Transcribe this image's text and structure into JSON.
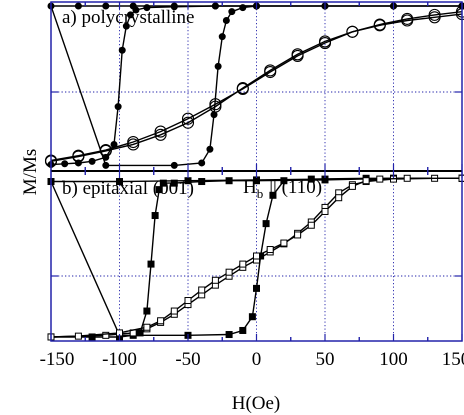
{
  "chart_data": [
    {
      "type": "line",
      "title": "a) polycrystalline",
      "xlabel": "H(Oe)",
      "ylabel": "M/Ms",
      "xlim": [
        -150,
        150
      ],
      "ylim": [
        -1.05,
        1.05
      ],
      "x_ticks": [
        "-150",
        "-100",
        "-50",
        "0",
        "50",
        "100",
        "150"
      ],
      "grid": true,
      "series": [
        {
          "marker": "filled-circle",
          "x": [
            -150,
            -140,
            -130,
            -120,
            -110,
            -104,
            -101,
            -98,
            -95,
            -92,
            -88,
            -80,
            -60,
            -30,
            0,
            50,
            100,
            150
          ],
          "y": [
            -0.97,
            -0.96,
            -0.95,
            -0.93,
            -0.88,
            -0.72,
            -0.25,
            0.45,
            0.75,
            0.89,
            0.95,
            0.98,
            0.99,
            1.0,
            1.0,
            1.0,
            1.0,
            1.0
          ]
        },
        {
          "marker": "filled-circle",
          "x": [
            150,
            100,
            50,
            0,
            -30,
            -60,
            -90,
            -110,
            -130,
            -150,
            -110,
            -60,
            -40,
            -34,
            -31,
            -28,
            -25,
            -22,
            -18,
            -10,
            0
          ],
          "y": [
            1.0,
            1.0,
            1.0,
            1.0,
            1.0,
            1.0,
            1.0,
            1.0,
            1.0,
            1.0,
            -0.98,
            -0.98,
            -0.95,
            -0.78,
            -0.35,
            0.25,
            0.62,
            0.82,
            0.93,
            0.98,
            1.0
          ]
        },
        {
          "marker": "open-circle",
          "x": [
            -150,
            -130,
            -110,
            -90,
            -70,
            -50,
            -30,
            -10,
            10,
            30,
            50,
            70,
            90,
            110,
            130,
            150
          ],
          "y": [
            -0.93,
            -0.87,
            -0.8,
            -0.72,
            -0.6,
            -0.45,
            -0.25,
            -0.02,
            0.2,
            0.4,
            0.56,
            0.68,
            0.76,
            0.82,
            0.86,
            0.9
          ]
        },
        {
          "marker": "open-circle",
          "x": [
            150,
            130,
            110,
            90,
            70,
            50,
            30,
            10,
            -10,
            -30,
            -50,
            -70,
            -90,
            -110,
            -130,
            -150
          ],
          "y": [
            0.93,
            0.89,
            0.84,
            0.77,
            0.68,
            0.54,
            0.38,
            0.18,
            -0.03,
            -0.22,
            -0.4,
            -0.56,
            -0.69,
            -0.79,
            -0.86,
            -0.92
          ]
        }
      ]
    },
    {
      "type": "line",
      "title": "b) epitaxial (001)",
      "annotation": {
        "main": "H",
        "sub": "b",
        "rest": "|| (110)"
      },
      "xlabel": "H(Oe)",
      "ylabel": "M/Ms",
      "xlim": [
        -150,
        150
      ],
      "ylim": [
        -1.05,
        1.05
      ],
      "x_ticks": [
        "-150",
        "-100",
        "-50",
        "0",
        "50",
        "100",
        "150"
      ],
      "grid": true,
      "series": [
        {
          "marker": "filled-square",
          "x": [
            -150,
            -120,
            -100,
            -90,
            -85,
            -80,
            -77,
            -74,
            -71,
            -68,
            -60,
            -40,
            -20,
            0,
            50,
            100,
            150
          ],
          "y": [
            -1.0,
            -1.0,
            -1.0,
            -0.98,
            -0.95,
            -0.68,
            -0.1,
            0.5,
            0.82,
            0.9,
            0.9,
            0.92,
            0.93,
            0.93,
            0.94,
            0.96,
            0.96
          ]
        },
        {
          "marker": "filled-square",
          "x": [
            150,
            100,
            50,
            0,
            -50,
            -100,
            -150,
            -100,
            -50,
            -20,
            -10,
            -3,
            0,
            3,
            7,
            12,
            20,
            40,
            80,
            150
          ],
          "y": [
            0.96,
            0.96,
            0.95,
            0.94,
            0.93,
            0.92,
            0.92,
            -0.98,
            -0.98,
            -0.97,
            -0.92,
            -0.75,
            -0.4,
            0.0,
            0.4,
            0.75,
            0.93,
            0.95,
            0.96,
            0.96
          ]
        },
        {
          "marker": "open-square",
          "x": [
            -150,
            -110,
            -90,
            -80,
            -70,
            -60,
            -50,
            -40,
            -30,
            -20,
            -10,
            0,
            10,
            20,
            30,
            40,
            50,
            60,
            70,
            80,
            100,
            130,
            150
          ],
          "y": [
            -1.0,
            -0.98,
            -0.95,
            -0.9,
            -0.82,
            -0.72,
            -0.6,
            -0.48,
            -0.36,
            -0.25,
            -0.14,
            -0.05,
            0.05,
            0.15,
            0.28,
            0.42,
            0.6,
            0.78,
            0.88,
            0.92,
            0.95,
            0.96,
            0.96
          ]
        },
        {
          "marker": "open-square",
          "x": [
            150,
            110,
            90,
            80,
            70,
            60,
            50,
            40,
            30,
            20,
            10,
            0,
            -10,
            -20,
            -30,
            -40,
            -50,
            -60,
            -70,
            -80,
            -100,
            -130,
            -150
          ],
          "y": [
            0.96,
            0.96,
            0.95,
            0.93,
            0.86,
            0.72,
            0.55,
            0.38,
            0.26,
            0.16,
            0.08,
            0.0,
            -0.1,
            -0.2,
            -0.3,
            -0.42,
            -0.55,
            -0.68,
            -0.8,
            -0.88,
            -0.95,
            -0.99,
            -1.0
          ]
        }
      ]
    }
  ]
}
